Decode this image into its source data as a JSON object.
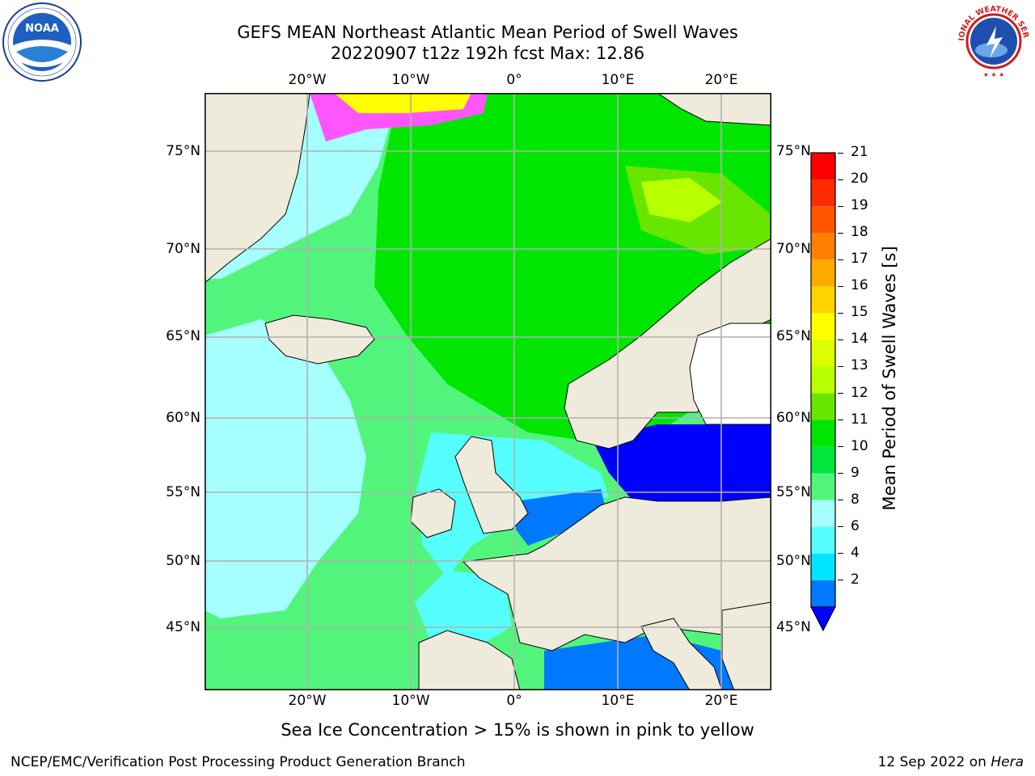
{
  "header": {
    "title_line1": "GEFS MEAN Northeast Atlantic Mean Period of Swell Waves",
    "title_line2": "20220907 t12z 192h fcst   Max: 12.86"
  },
  "logos": {
    "left": {
      "name": "NOAA",
      "ring_text": "NATIONAL OCEANIC AND ATMOSPHERIC ADMINISTRATION · U.S. DEPARTMENT OF COMMERCE"
    },
    "right": {
      "name": "NATIONAL WEATHER SERVICE"
    }
  },
  "map": {
    "lon_labels": [
      "20°W",
      "10°W",
      "0°",
      "10°E",
      "20°E"
    ],
    "lat_labels": [
      "75°N",
      "70°N",
      "65°N",
      "60°N",
      "55°N",
      "50°N",
      "45°N"
    ],
    "colors": {
      "land": "#eeebdc",
      "grid": "#b0b0b0",
      "coast": "#000000"
    }
  },
  "colorbar": {
    "label": "Mean Period of Swell Waves [s]",
    "ticks": [
      "21",
      "20",
      "19",
      "18",
      "17",
      "16",
      "15",
      "14",
      "13",
      "12",
      "11",
      "10",
      "9",
      "8",
      "6",
      "4",
      "2"
    ],
    "colors_top_to_bottom": [
      "#ff0000",
      "#ff2a00",
      "#ff5500",
      "#ff8000",
      "#ffaa00",
      "#ffd400",
      "#ffff00",
      "#dcff00",
      "#b8ff00",
      "#69e600",
      "#00e600",
      "#00e63c",
      "#52f57c",
      "#a6ffff",
      "#55ffff",
      "#00e5ff",
      "#0078ff"
    ],
    "under_color": "#0000ff"
  },
  "notes": {
    "sea_ice": "Sea Ice Concentration > 15% is shown in pink to yellow"
  },
  "footer": {
    "left": "NCEP/EMC/Verification Post Processing Product Generation Branch",
    "right_date": "12 Sep 2022 on ",
    "right_host": "Hera"
  }
}
